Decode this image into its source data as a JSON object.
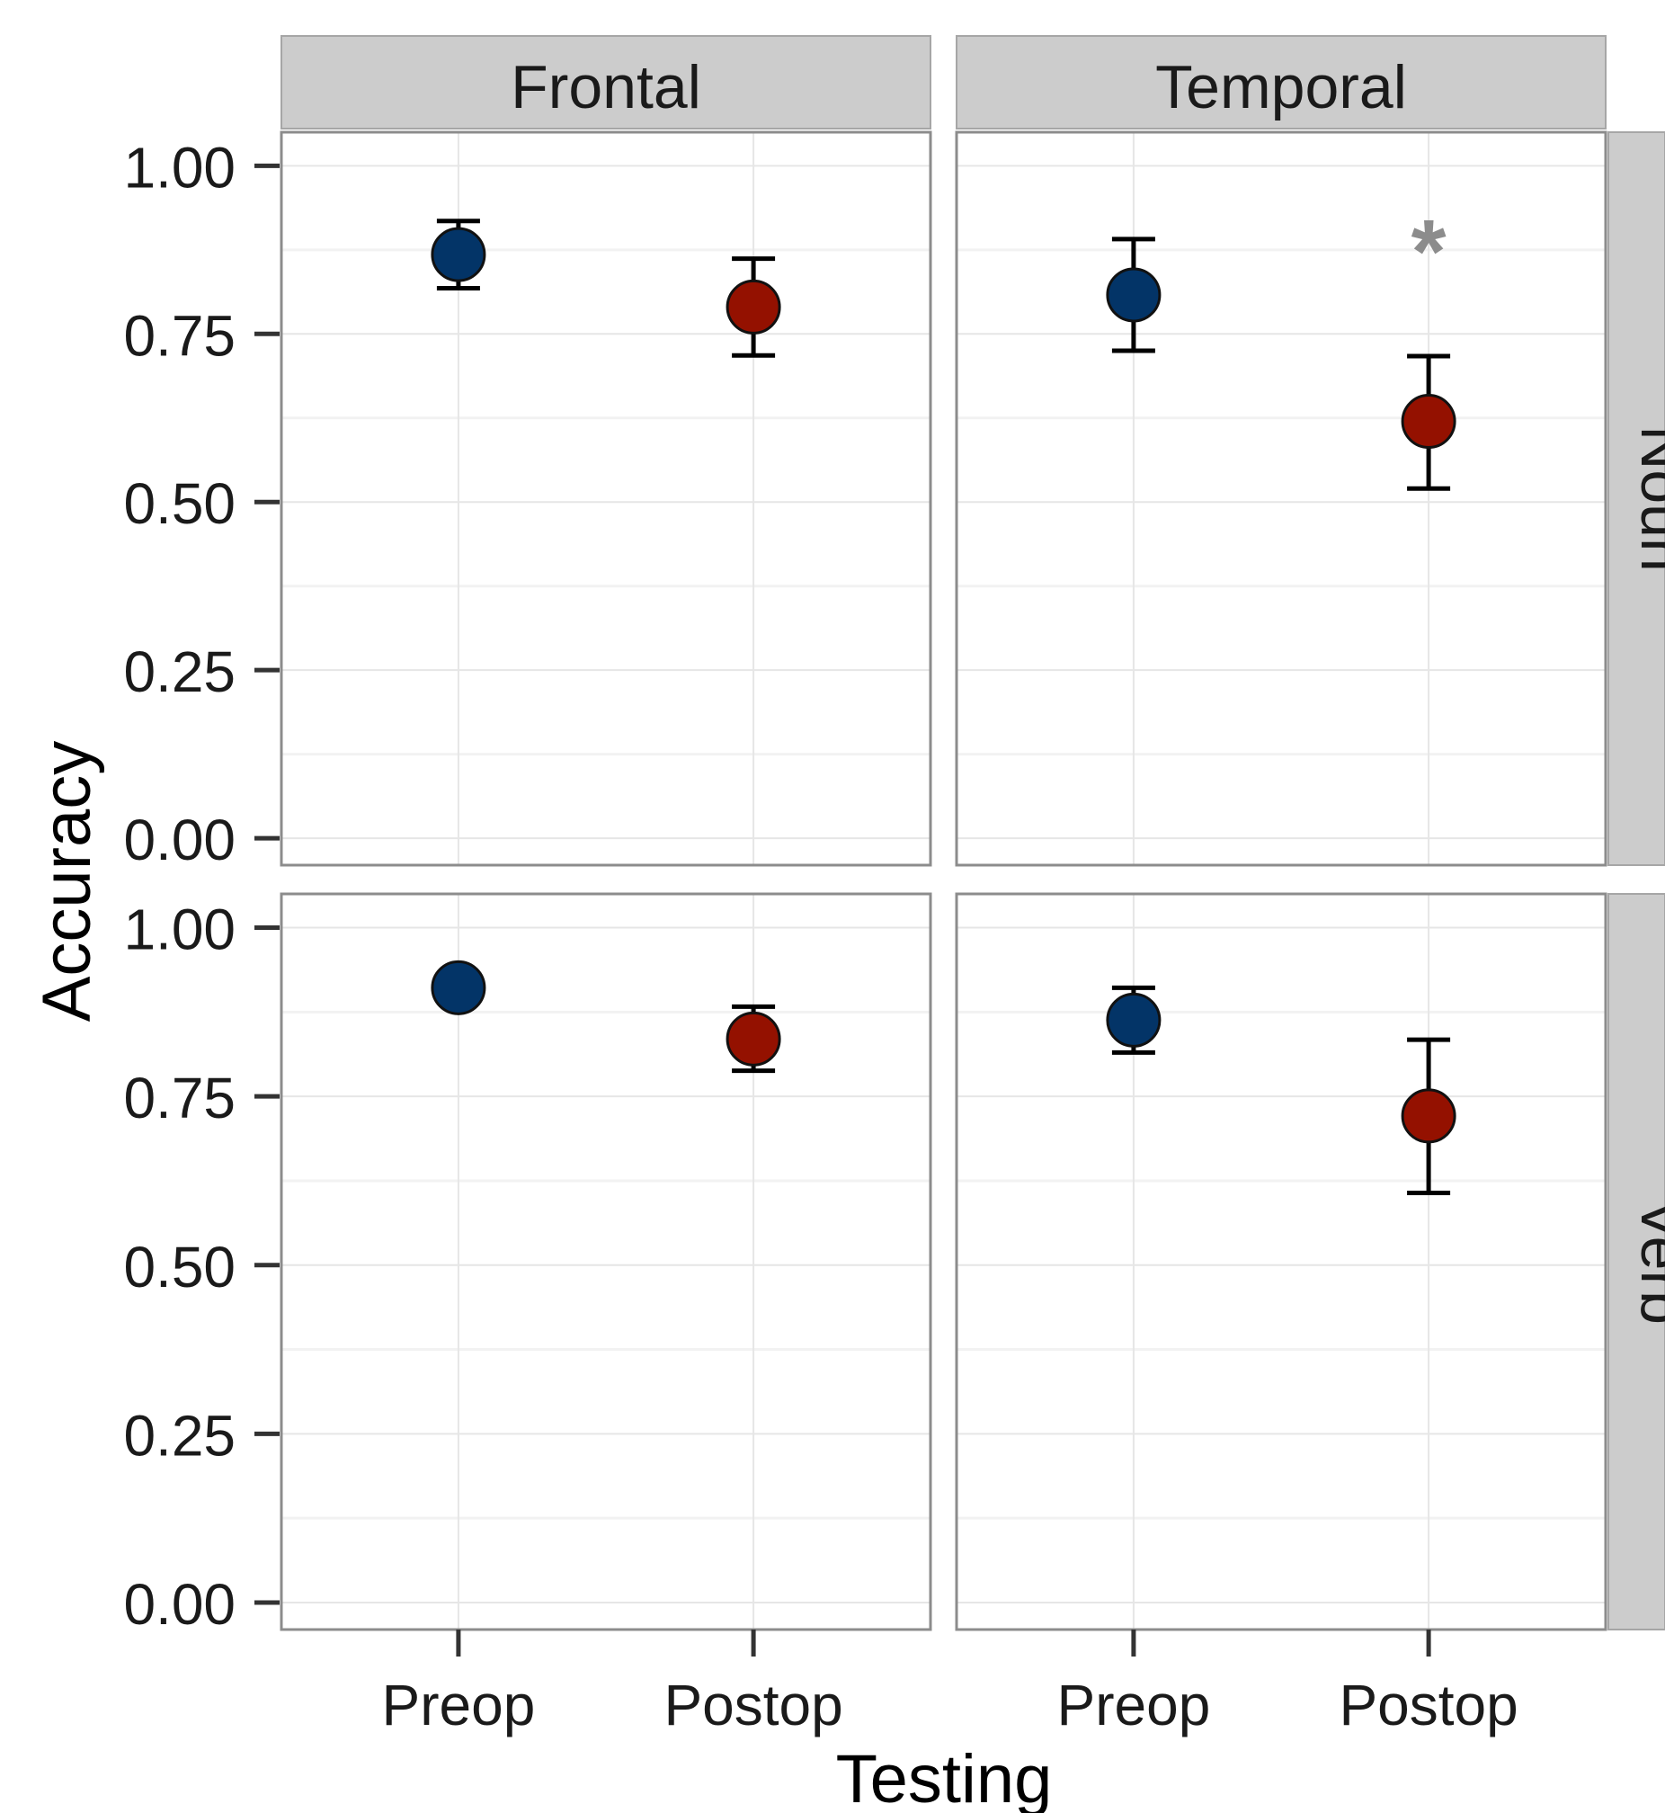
{
  "chart_data": {
    "type": "scatter",
    "xlabel": "Testing",
    "ylabel": "Accuracy",
    "categories": [
      "Preop",
      "Postop"
    ],
    "ylim": [
      -0.04,
      1.05
    ],
    "yticks": [
      0.0,
      0.25,
      0.5,
      0.75,
      1.0
    ],
    "ytick_labels": [
      "0.00",
      "0.25",
      "0.50",
      "0.75",
      "1.00"
    ],
    "columns": [
      "Frontal",
      "Temporal"
    ],
    "rows": [
      "Noun",
      "Verb"
    ],
    "colors": {
      "Preop": "#033467",
      "Postop": "#941100"
    },
    "grid": true,
    "legend": "none",
    "panels": [
      {
        "column": "Frontal",
        "row": "Noun",
        "points": [
          {
            "x": "Preop",
            "y": 0.868,
            "low": 0.818,
            "high": 0.918
          },
          {
            "x": "Postop",
            "y": 0.79,
            "low": 0.718,
            "high": 0.862
          }
        ],
        "annotation": ""
      },
      {
        "column": "Temporal",
        "row": "Noun",
        "points": [
          {
            "x": "Preop",
            "y": 0.808,
            "low": 0.725,
            "high": 0.891
          },
          {
            "x": "Postop",
            "y": 0.62,
            "low": 0.52,
            "high": 0.717
          }
        ],
        "annotation": "*",
        "annotation_x": "Postop",
        "annotation_y": 0.88
      },
      {
        "column": "Frontal",
        "row": "Verb",
        "points": [
          {
            "x": "Preop",
            "y": 0.911,
            "low": 0.911,
            "high": 0.911
          },
          {
            "x": "Postop",
            "y": 0.835,
            "low": 0.788,
            "high": 0.883
          }
        ],
        "annotation": ""
      },
      {
        "column": "Temporal",
        "row": "Verb",
        "points": [
          {
            "x": "Preop",
            "y": 0.863,
            "low": 0.815,
            "high": 0.911
          },
          {
            "x": "Postop",
            "y": 0.721,
            "low": 0.607,
            "high": 0.834
          }
        ],
        "annotation": ""
      }
    ]
  }
}
